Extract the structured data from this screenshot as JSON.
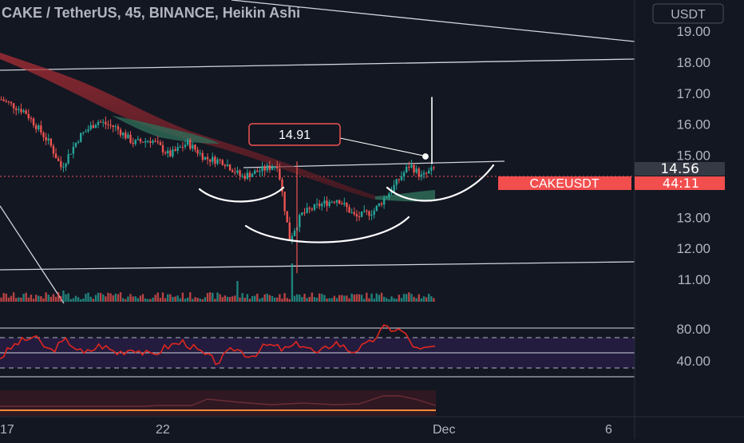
{
  "header": {
    "title": "CAKE / TetherUS, 45, BINANCE, Heikin Ashi",
    "currency_badge": "USDT"
  },
  "annotation": {
    "callout_value": "14.91"
  },
  "price_tag": {
    "current_price": "14.56",
    "symbol": "CAKEUSDT",
    "countdown": "44:11"
  },
  "colors": {
    "background": "#131722",
    "up_candle": "#26a69a",
    "down_candle": "#ef5350",
    "rsi_line": "#e0261f",
    "rsi_band": "#2a1f4a",
    "symbol_tag": "#f24e4e",
    "drawing": "#ffffff",
    "axis_text": "#b2b5be"
  },
  "chart_data": [
    {
      "type": "candlestick",
      "style": "Heikin Ashi",
      "title": "CAKE / TetherUS, 45, BINANCE, Heikin Ashi",
      "y_axis_ticks": [
        "19.00",
        "18.00",
        "17.00",
        "16.00",
        "15.00",
        "13.00",
        "12.00",
        "11.00"
      ],
      "ylim": [
        10.6,
        19.6
      ],
      "x_axis_ticks": [
        "17",
        "22",
        "Dec",
        "6"
      ],
      "current_price": 14.56,
      "grid": false,
      "approx_close_path": [
        {
          "x": 0.0,
          "y": 16.8
        },
        {
          "x": 0.04,
          "y": 16.4
        },
        {
          "x": 0.08,
          "y": 15.4
        },
        {
          "x": 0.1,
          "y": 14.6
        },
        {
          "x": 0.13,
          "y": 15.6
        },
        {
          "x": 0.16,
          "y": 16.1
        },
        {
          "x": 0.19,
          "y": 15.9
        },
        {
          "x": 0.22,
          "y": 15.4
        },
        {
          "x": 0.25,
          "y": 15.5
        },
        {
          "x": 0.28,
          "y": 15.0
        },
        {
          "x": 0.31,
          "y": 15.4
        },
        {
          "x": 0.34,
          "y": 14.9
        },
        {
          "x": 0.37,
          "y": 14.8
        },
        {
          "x": 0.4,
          "y": 14.3
        },
        {
          "x": 0.43,
          "y": 14.5
        },
        {
          "x": 0.46,
          "y": 14.7
        },
        {
          "x": 0.48,
          "y": 12.3
        },
        {
          "x": 0.5,
          "y": 13.1
        },
        {
          "x": 0.53,
          "y": 13.4
        },
        {
          "x": 0.56,
          "y": 13.6
        },
        {
          "x": 0.59,
          "y": 13.0
        },
        {
          "x": 0.62,
          "y": 13.2
        },
        {
          "x": 0.65,
          "y": 13.9
        },
        {
          "x": 0.68,
          "y": 14.7
        },
        {
          "x": 0.7,
          "y": 14.3
        },
        {
          "x": 0.72,
          "y": 14.56
        }
      ]
    },
    {
      "type": "line",
      "indicator": "RSI",
      "y_axis_ticks": [
        "80.00",
        "40.00"
      ],
      "ylim": [
        20,
        100
      ],
      "bands": [
        30,
        70
      ],
      "approx_values": [
        44,
        62,
        70,
        52,
        66,
        48,
        60,
        50,
        56,
        46,
        58,
        64,
        50,
        38,
        56,
        46,
        60,
        54,
        62,
        48,
        64,
        52,
        60,
        82,
        78,
        52,
        58
      ]
    }
  ]
}
